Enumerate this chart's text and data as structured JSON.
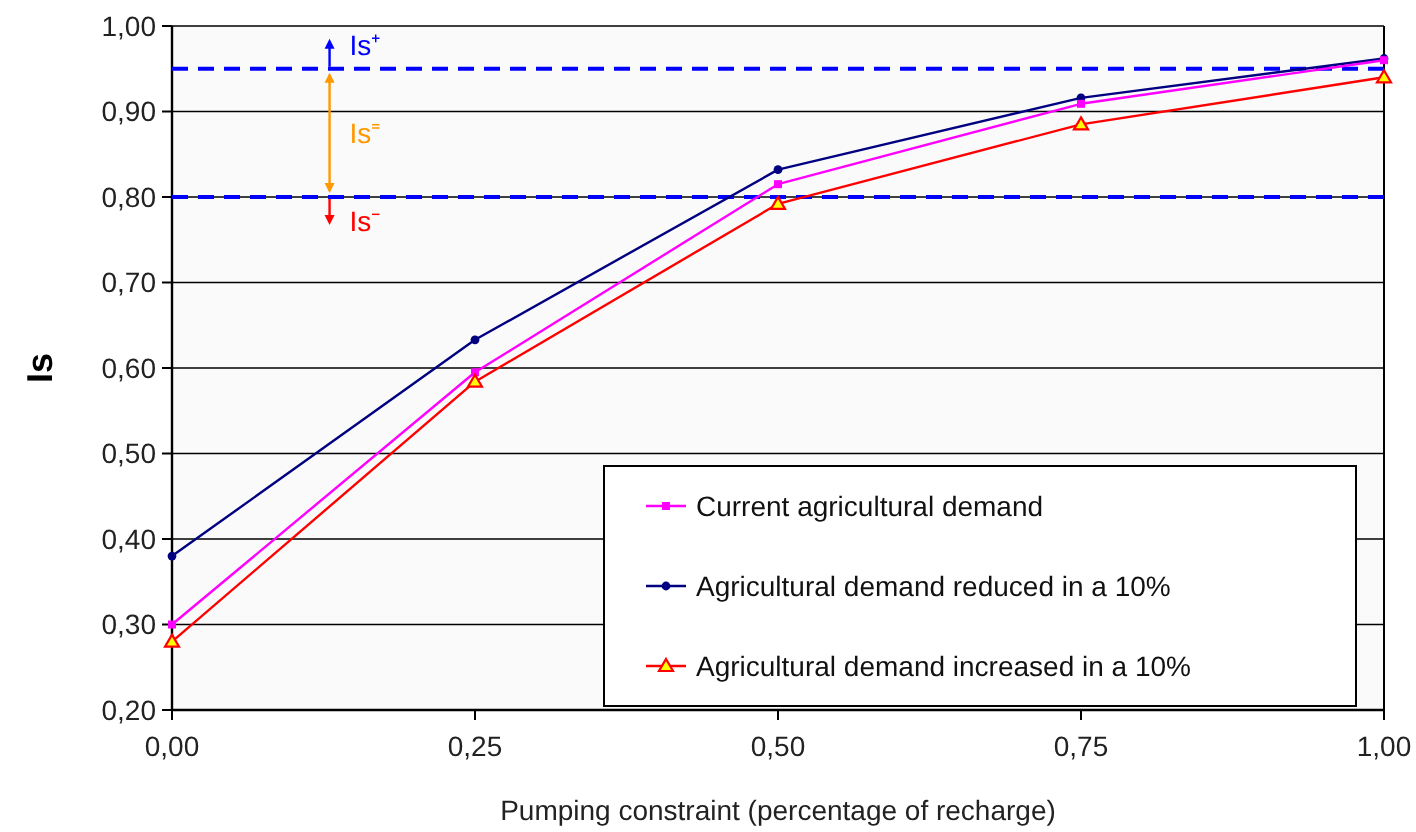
{
  "chart_data": {
    "type": "line",
    "xlabel": "Pumping constraint (percentage of recharge)",
    "ylabel": "Is",
    "x": [
      0,
      0.25,
      0.5,
      0.75,
      1
    ],
    "xlim": [
      0,
      1
    ],
    "xticks": [
      {
        "value": 0,
        "label": "0,00"
      },
      {
        "value": 0.25,
        "label": "0,25"
      },
      {
        "value": 0.5,
        "label": "0,50"
      },
      {
        "value": 0.75,
        "label": "0,75"
      },
      {
        "value": 1,
        "label": "1,00"
      }
    ],
    "ylim": [
      0.2,
      1
    ],
    "yticks": [
      {
        "value": 0.2,
        "label": "0,20"
      },
      {
        "value": 0.3,
        "label": "0,30"
      },
      {
        "value": 0.4,
        "label": "0,40"
      },
      {
        "value": 0.5,
        "label": "0,50"
      },
      {
        "value": 0.6,
        "label": "0,60"
      },
      {
        "value": 0.7,
        "label": "0,70"
      },
      {
        "value": 0.8,
        "label": "0,80"
      },
      {
        "value": 0.9,
        "label": "0,90"
      },
      {
        "value": 1,
        "label": "1,00"
      }
    ],
    "grid": "y",
    "legend": "bottom right",
    "line_style": "solid",
    "series": [
      {
        "name": "Current agricultural demand",
        "color": "#ff00ff",
        "marker": "square",
        "values": [
          0.3,
          0.595,
          0.815,
          0.909,
          0.96
        ]
      },
      {
        "name": "Agricultural demand reduced in a 10%",
        "color": "#000080",
        "marker": "circle",
        "values": [
          0.38,
          0.633,
          0.832,
          0.916,
          0.962
        ]
      },
      {
        "name": "Agricultural demand increased in a 10%",
        "color": "#ff0000",
        "marker": "triangle",
        "values": [
          0.28,
          0.584,
          0.792,
          0.885,
          0.94
        ]
      }
    ],
    "ref_lines": [
      {
        "axis": "y",
        "value": 0.95,
        "color": "#0000ff",
        "line_style": "dashed"
      },
      {
        "axis": "y",
        "value": 0.8,
        "color": "#0000ff",
        "line_style": "dashed"
      }
    ],
    "annotations": [
      {
        "text": "Is⁺",
        "y": 0.95
      },
      {
        "text": "Is⁼",
        "y": 0.8
      },
      {
        "text": "Is⁻",
        "y": 0.8
      }
    ]
  }
}
